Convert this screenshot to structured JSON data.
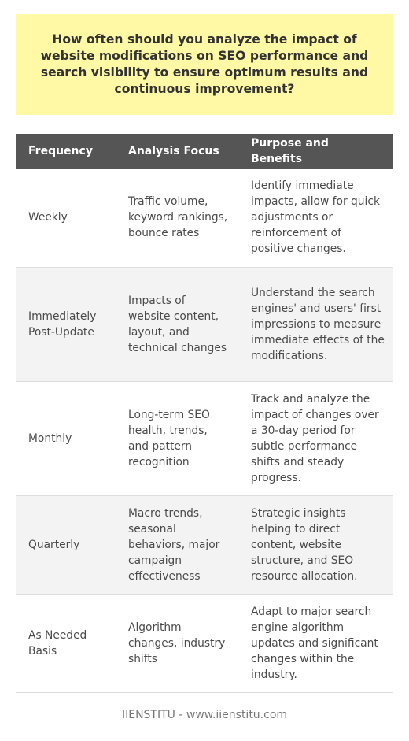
{
  "title": "How often should you analyze the impact of website modifications on SEO performance and search visibility to ensure optimum results and continuous improvement?",
  "table": {
    "headers": [
      "Frequency",
      "Analysis Focus",
      "Purpose and Benefits"
    ],
    "rows": [
      {
        "frequency": "Weekly",
        "focus": "Traffic volume, keyword rankings, bounce rates",
        "purpose": "Identify immediate impacts, allow for quick adjustments or reinforcement of positive changes."
      },
      {
        "frequency": "Immediately Post-Update",
        "focus": "Impacts of website content, layout, and technical changes",
        "purpose": "Understand the search engines' and users' first impressions to measure immediate effects of the modifications."
      },
      {
        "frequency": "Monthly",
        "focus": "Long-term SEO health, trends, and pattern recognition",
        "purpose": "Track and analyze the impact of changes over a 30-day period for subtle performance shifts and steady progress."
      },
      {
        "frequency": "Quarterly",
        "focus": "Macro trends, seasonal behaviors, major campaign effectiveness",
        "purpose": "Strategic insights helping to direct content, website structure, and SEO resource allocation."
      },
      {
        "frequency": "As Needed Basis",
        "focus": "Algorithm changes, industry shifts",
        "purpose": "Adapt to major search engine algorithm updates and significant changes within the industry."
      }
    ]
  },
  "footer": "IIENSTITU - www.iienstitu.com",
  "colors": {
    "title_background": "#fff9a6",
    "header_background": "#555555",
    "alt_row_background": "#f3f3f3"
  }
}
